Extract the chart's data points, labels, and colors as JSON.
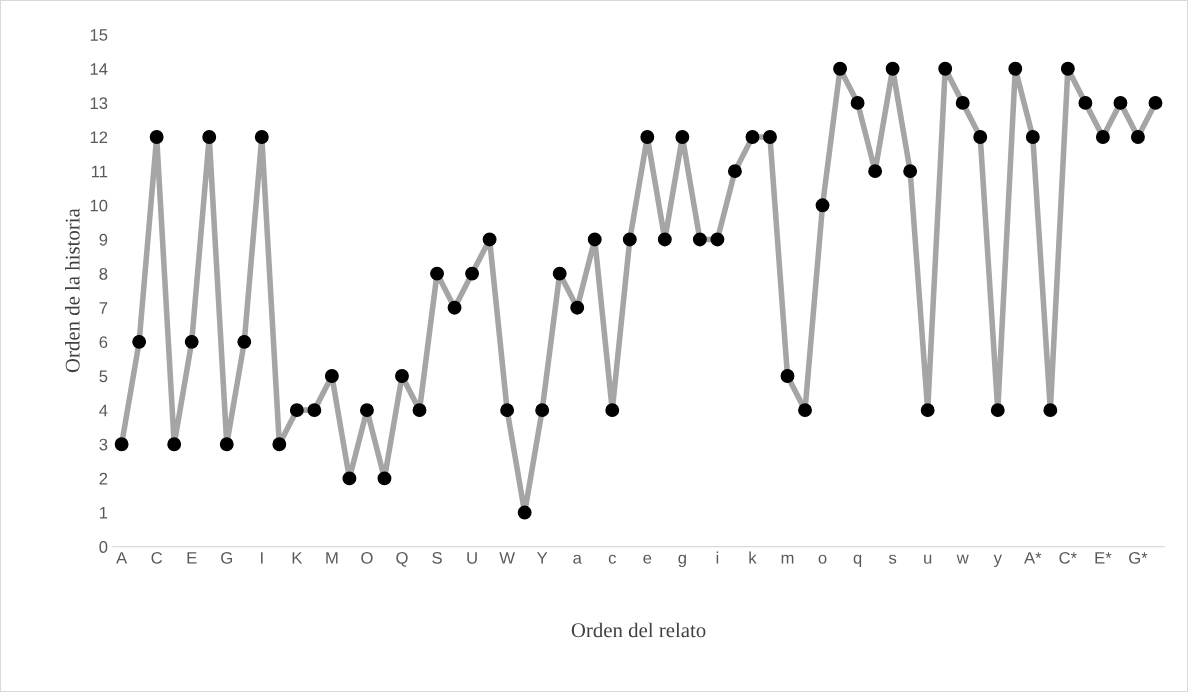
{
  "chart_data": {
    "type": "line",
    "xlabel": "Orden del relato",
    "ylabel": "Orden de la historia",
    "categories": [
      "A",
      null,
      "C",
      null,
      "E",
      null,
      "G",
      null,
      "I",
      null,
      "K",
      null,
      "M",
      null,
      "O",
      null,
      "Q",
      null,
      "S",
      null,
      "U",
      null,
      "W",
      null,
      "Y",
      null,
      "a",
      null,
      "c",
      null,
      "e",
      null,
      "g",
      null,
      "i",
      null,
      "k",
      null,
      "m",
      null,
      "o",
      null,
      "q",
      null,
      "s",
      null,
      "u",
      null,
      "w",
      null,
      "y",
      null,
      "A*",
      null,
      "C*",
      null,
      "E*",
      null,
      "G*",
      null
    ],
    "series": [
      {
        "color": "#a5a5a5",
        "values": [
          3,
          6,
          12,
          3,
          6,
          12,
          3,
          6,
          12,
          3,
          4,
          4,
          5,
          2,
          4,
          2,
          5,
          4,
          8,
          7,
          8,
          9,
          4,
          1,
          4,
          8,
          7,
          9,
          4,
          9,
          12,
          9,
          12,
          9,
          9,
          11,
          12,
          12,
          5,
          4,
          10,
          14,
          13,
          11,
          14,
          11,
          4,
          14,
          13,
          12,
          4,
          14,
          12,
          4,
          14,
          13,
          12,
          13,
          12,
          13
        ]
      }
    ],
    "marker": "circle",
    "line_style": "solid",
    "grid": false,
    "ylim": [
      0,
      15
    ],
    "yticks": [
      0,
      1,
      2,
      3,
      4,
      5,
      6,
      7,
      8,
      9,
      10,
      11,
      12,
      13,
      14,
      15
    ]
  }
}
